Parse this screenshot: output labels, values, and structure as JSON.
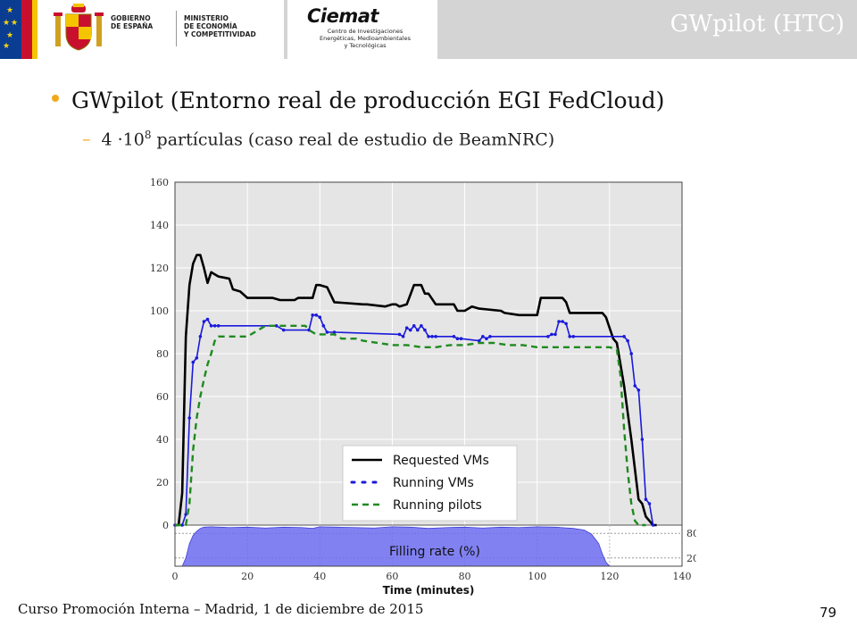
{
  "header": {
    "gov_lines": [
      "GOBIERNO",
      "DE ESPAÑA"
    ],
    "ministry_lines": [
      "MINISTERIO",
      "DE ECONOMÍA",
      "Y COMPETITIVIDAD"
    ],
    "ciemat_name": "Ciemat",
    "ciemat_sub": [
      "Centro de Investigaciones",
      "Energéticas, Medioambientales",
      "y Tecnológicas"
    ],
    "slide_tag": "GWpilot (HTC)"
  },
  "content": {
    "main_bullet": "GWpilot (Entorno real de producción EGI FedCloud)",
    "sub_dash": "–",
    "sub_prefix": "4 ·10",
    "sub_exp": "8",
    "sub_suffix": " partículas (caso real de estudio de BeamNRC)"
  },
  "footer": {
    "text": "Curso Promoción Interna – Madrid, 1 de diciembre de 2015",
    "page": "79"
  },
  "colors": {
    "requested": "#000000",
    "running_vms": "#1a1adc",
    "running_pilots": "#1f8a1f",
    "fill": "#6b6bf0",
    "plot_bg": "#e5e5e5",
    "accent": "#f2a81d"
  },
  "chart_data": [
    {
      "type": "line",
      "title": "",
      "xlabel": "",
      "ylabel": "",
      "xlim": [
        0,
        140
      ],
      "ylim": [
        0,
        160
      ],
      "yticks": [
        0,
        20,
        40,
        60,
        80,
        100,
        120,
        140,
        160
      ],
      "grid": true,
      "legend_position": "lower-right",
      "series": [
        {
          "name": "Requested VMs",
          "style": "solid",
          "x": [
            0,
            1,
            2,
            3,
            4,
            5,
            6,
            7,
            8,
            9,
            10,
            11,
            12,
            15,
            16,
            18,
            20,
            27,
            29,
            33,
            34,
            38,
            39,
            40,
            42,
            44,
            52,
            53,
            58,
            60,
            61,
            62,
            64,
            66,
            68,
            69,
            70,
            72,
            77,
            78,
            80,
            82,
            84,
            90,
            91,
            95,
            100,
            101,
            107,
            108,
            109,
            110,
            118,
            119,
            120,
            121,
            122,
            124,
            126,
            128,
            129,
            130,
            131,
            132,
            133
          ],
          "y": [
            0,
            0,
            15,
            88,
            112,
            122,
            126,
            126,
            120,
            113,
            118,
            117,
            116,
            115,
            110,
            109,
            106,
            106,
            105,
            105,
            106,
            106,
            112,
            112,
            111,
            104,
            103,
            103,
            102,
            103,
            103,
            102,
            103,
            112,
            112,
            108,
            108,
            103,
            103,
            100,
            100,
            102,
            101,
            100,
            99,
            98,
            98,
            106,
            106,
            104,
            99,
            99,
            99,
            97,
            92,
            87,
            85,
            65,
            40,
            12,
            10,
            4,
            2,
            0,
            0
          ]
        },
        {
          "name": "Running VMs",
          "style": "dotted",
          "x": [
            0,
            2,
            3,
            4,
            5,
            6,
            7,
            8,
            9,
            10,
            11,
            12,
            28,
            30,
            37,
            38,
            39,
            40,
            41,
            42,
            44,
            62,
            63,
            64,
            65,
            66,
            67,
            68,
            69,
            70,
            71,
            72,
            77,
            78,
            79,
            84,
            85,
            86,
            87,
            103,
            104,
            105,
            106,
            107,
            108,
            109,
            110,
            124,
            125,
            126,
            127,
            128,
            129,
            130,
            131,
            132
          ],
          "y": [
            0,
            0,
            5,
            50,
            76,
            78,
            88,
            95,
            96,
            93,
            93,
            93,
            93,
            91,
            91,
            98,
            98,
            97,
            93,
            90,
            90,
            89,
            88,
            92,
            91,
            93,
            91,
            93,
            91,
            88,
            88,
            88,
            88,
            87,
            87,
            86,
            88,
            87,
            88,
            88,
            89,
            89,
            95,
            95,
            94,
            88,
            88,
            88,
            86,
            80,
            65,
            63,
            40,
            12,
            10,
            0
          ]
        },
        {
          "name": "Running pilots",
          "style": "dashed",
          "x": [
            0,
            2,
            3,
            4,
            5,
            6,
            7,
            8,
            9,
            10,
            11,
            12,
            20,
            22,
            23,
            24,
            25,
            26,
            27,
            28,
            36,
            37,
            38,
            39,
            40,
            42,
            44,
            46,
            48,
            50,
            52,
            56,
            60,
            64,
            68,
            72,
            76,
            80,
            84,
            88,
            92,
            96,
            100,
            104,
            108,
            112,
            116,
            120,
            122,
            123,
            124,
            125,
            126,
            127,
            128,
            129,
            130
          ],
          "y": [
            0,
            0,
            0,
            10,
            35,
            50,
            60,
            68,
            75,
            80,
            86,
            88,
            88,
            90,
            91,
            92,
            93,
            93,
            93,
            93,
            93,
            91,
            90,
            89,
            89,
            89,
            89,
            87,
            87,
            87,
            86,
            85,
            84,
            84,
            83,
            83,
            84,
            84,
            85,
            85,
            84,
            84,
            83,
            83,
            83,
            83,
            83,
            83,
            82,
            70,
            45,
            25,
            10,
            2,
            0,
            0,
            0
          ]
        }
      ]
    },
    {
      "type": "area",
      "title": "",
      "xlabel": "Time (minutes)",
      "ylabel": "",
      "xlim": [
        0,
        140
      ],
      "ylim": [
        0,
        100
      ],
      "xticks": [
        0,
        20,
        40,
        60,
        80,
        100,
        120,
        140
      ],
      "yticks_right": [
        20,
        80
      ],
      "series": [
        {
          "name": "Filling rate (%)",
          "x": [
            0,
            2,
            3,
            4,
            5,
            6,
            7,
            8,
            10,
            15,
            20,
            25,
            30,
            35,
            38,
            40,
            45,
            50,
            55,
            60,
            65,
            70,
            75,
            80,
            85,
            90,
            95,
            100,
            105,
            110,
            113,
            115,
            117,
            118,
            119,
            120,
            140
          ],
          "y": [
            0,
            0,
            20,
            55,
            75,
            85,
            92,
            95,
            96,
            94,
            95,
            93,
            95,
            94,
            92,
            96,
            95,
            94,
            93,
            96,
            95,
            92,
            94,
            95,
            93,
            95,
            94,
            96,
            95,
            92,
            88,
            78,
            55,
            30,
            10,
            0,
            0
          ]
        }
      ]
    }
  ]
}
